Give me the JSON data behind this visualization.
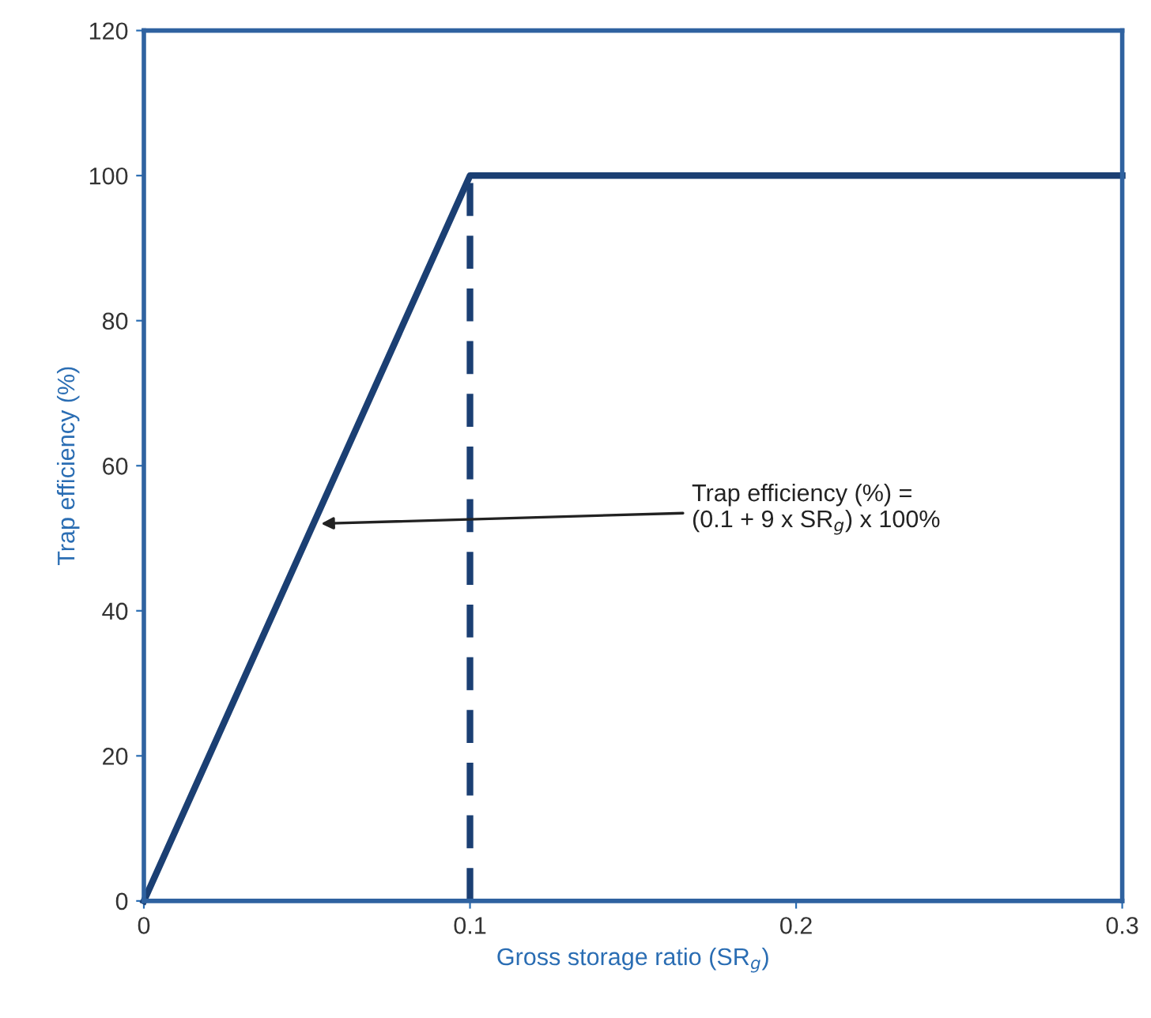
{
  "chart_data": {
    "type": "line",
    "xlabel": "Gross storage ratio (SR$_{g}$)",
    "ylabel": "Trap efficiency (%)",
    "series": [
      {
        "x": [
          0,
          0.1,
          0.3
        ],
        "values": [
          0,
          100,
          100
        ],
        "color": "#1b3f73",
        "line_style": "solid"
      },
      {
        "x": [
          0.1,
          0.1
        ],
        "values": [
          0,
          100
        ],
        "color": "#1b3f73",
        "line_style": "dashed"
      }
    ],
    "xlim": [
      0,
      0.3
    ],
    "ylim": [
      0,
      120
    ],
    "xticks": [
      0,
      0.1,
      0.2,
      0.3
    ],
    "yticks": [
      0,
      20,
      40,
      60,
      80,
      100,
      120
    ],
    "annotations": [
      {
        "text": "Trap efficiency (%) =\n(0.1 + 9 x SR$_{g}$) x 100%",
        "x": 0.053,
        "y": 52
      }
    ],
    "grid": false,
    "legend": false,
    "marker": "none"
  }
}
